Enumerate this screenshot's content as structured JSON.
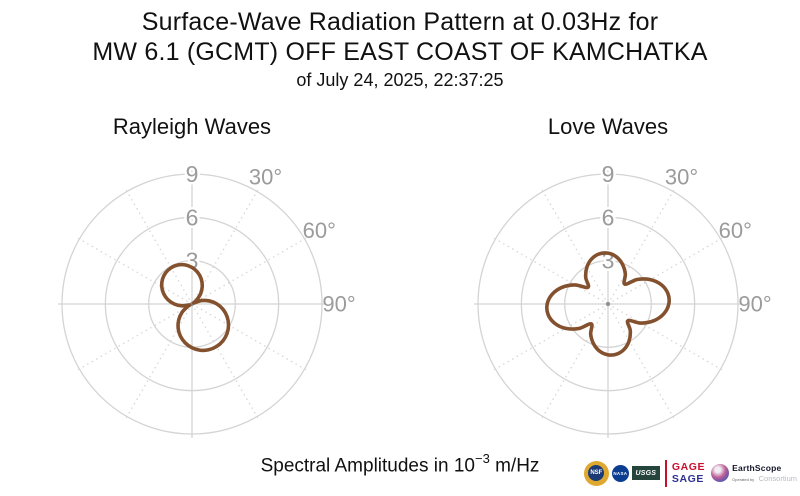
{
  "figure": {
    "title_line1": "Surface-Wave Radiation Pattern at 0.03Hz for",
    "title_line2": "MW 6.1 (GCMT) OFF EAST COAST OF KAMCHATKA",
    "title_line3": "of July 24, 2025, 22:37:25",
    "caption_prefix": "Spectral Amplitudes in ",
    "caption_base": "10",
    "caption_exponent": "−3",
    "caption_suffix": " m/Hz"
  },
  "colors": {
    "curve": "#84512F",
    "grid": "#D4D4D4",
    "tick_labels": "#9B9B9B",
    "center_dot": "#909090",
    "title_text": "#111111",
    "background": "#FFFFFF"
  },
  "chart_data": [
    {
      "type": "line",
      "subtype": "polar-radiation-pattern",
      "id": "rayleigh",
      "title": "Rayleigh Waves",
      "units": "10^-3 m/Hz",
      "theta_zero": "North (0 deg at top)",
      "theta_direction": "clockwise",
      "r_ticks": [
        3,
        6,
        9
      ],
      "r_max": 9,
      "theta_ticks": [
        {
          "azimuth_deg": 30,
          "label": "30°"
        },
        {
          "azimuth_deg": 60,
          "label": "60°"
        },
        {
          "azimuth_deg": 90,
          "label": "90°"
        }
      ],
      "grid_spokes_deg": [
        0,
        30,
        60,
        90,
        120,
        150,
        180,
        210,
        240,
        270,
        300,
        330
      ],
      "lobes": [
        {
          "azimuth_deg": 332,
          "peak_amplitude": 2.9
        },
        {
          "azimuth_deg": 152,
          "peak_amplitude": 3.4
        }
      ],
      "series": {
        "azimuth_deg": [
          0,
          10,
          20,
          30,
          40,
          50,
          60,
          70,
          80,
          90,
          100,
          110,
          120,
          130,
          140,
          150,
          160,
          170,
          180,
          190,
          200,
          210,
          220,
          230,
          240,
          250,
          260,
          270,
          280,
          290,
          300,
          310,
          320,
          330,
          340,
          350
        ],
        "amplitude": [
          2.53,
          2.23,
          1.86,
          1.42,
          0.93,
          0.41,
          0.14,
          0.69,
          1.22,
          1.73,
          2.19,
          2.59,
          2.92,
          3.17,
          3.33,
          3.4,
          3.37,
          3.25,
          3.03,
          2.73,
          2.36,
          1.92,
          1.43,
          0.91,
          0.36,
          0.19,
          0.72,
          1.23,
          1.69,
          2.09,
          2.42,
          2.67,
          2.83,
          2.9,
          2.87,
          2.75
        ]
      }
    },
    {
      "type": "line",
      "subtype": "polar-radiation-pattern",
      "id": "love",
      "title": "Love Waves",
      "units": "10^-3 m/Hz",
      "theta_zero": "North (0 deg at top)",
      "theta_direction": "clockwise",
      "r_ticks": [
        3,
        6,
        9
      ],
      "r_max": 9,
      "theta_ticks": [
        {
          "azimuth_deg": 30,
          "label": "30°"
        },
        {
          "azimuth_deg": 60,
          "label": "60°"
        },
        {
          "azimuth_deg": 90,
          "label": "90°"
        }
      ],
      "grid_spokes_deg": [
        0,
        30,
        60,
        90,
        120,
        150,
        180,
        210,
        240,
        270,
        300,
        330
      ],
      "lobes": [
        {
          "azimuth_deg": 355,
          "peak_amplitude": 3.55
        },
        {
          "azimuth_deg": 85,
          "peak_amplitude": 4.25
        },
        {
          "azimuth_deg": 175,
          "peak_amplitude": 3.55
        },
        {
          "azimuth_deg": 265,
          "peak_amplitude": 4.25
        }
      ],
      "series": {
        "azimuth_deg": [
          0,
          10,
          20,
          30,
          40,
          50,
          60,
          70,
          80,
          90,
          100,
          110,
          120,
          130,
          140,
          150,
          160,
          170,
          180,
          190,
          200,
          210,
          220,
          230,
          240,
          250,
          260,
          270,
          280,
          290,
          300,
          310,
          320,
          330,
          340,
          350
        ],
        "amplitude": [
          3.52,
          3.32,
          2.93,
          2.4,
          1.8,
          2.64,
          3.38,
          3.92,
          4.21,
          4.21,
          3.92,
          3.38,
          2.64,
          1.8,
          2.4,
          2.93,
          3.32,
          3.52,
          3.52,
          3.32,
          2.93,
          2.4,
          1.8,
          2.64,
          3.38,
          3.92,
          4.21,
          4.21,
          3.92,
          3.38,
          2.64,
          1.8,
          2.4,
          2.93,
          3.32,
          3.52
        ]
      }
    }
  ],
  "logos": {
    "nsf": "NSF",
    "nasa": "NASA",
    "usgs": "USGS",
    "gage": "GAGE",
    "sage": "SAGE",
    "earthscope_name": "EarthScope",
    "operated_by": "Operated by",
    "consortium": "Consortium"
  }
}
